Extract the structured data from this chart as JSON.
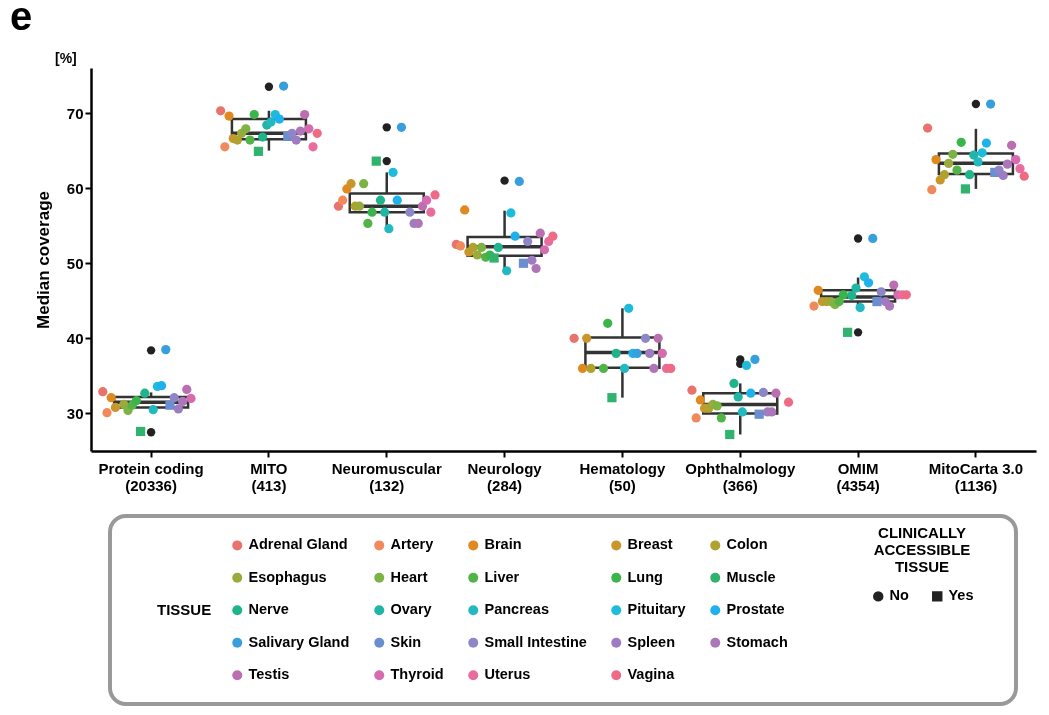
{
  "chart_data": {
    "type": "box",
    "title": "e",
    "subtitle": "[%]",
    "ylabel": "Median coverage",
    "legend_title": "TISSUE",
    "legend": "bottom",
    "marker": "circle",
    "annotations": [
      "CLINICALLY ACCESSIBLE TISSUE",
      "No",
      "Yes"
    ],
    "categories": [
      "Protein coding (20336)",
      "MITO (413)",
      "Neuromuscular (132)",
      "Neurology (284)",
      "Hematology (50)",
      "Ophthalmology (366)",
      "OMIM (4354)",
      "MitoCarta 3.0 (1136)"
    ],
    "ylim": [
      25,
      76
    ],
    "yticks": [
      30,
      40,
      50,
      60,
      70
    ],
    "boxes": [
      {
        "low": 30.5,
        "q1": 30.8,
        "median": 31.5,
        "q3": 32.2,
        "high": 32.8,
        "outliers": [
          38.4,
          27.5
        ]
      },
      {
        "low": 65.0,
        "q1": 66.5,
        "median": 67.3,
        "q3": 69.2,
        "high": 70.3,
        "outliers": [
          73.5
        ]
      },
      {
        "low": 54.7,
        "q1": 56.8,
        "median": 57.6,
        "q3": 59.3,
        "high": 62.1,
        "outliers": [
          68.1,
          63.6
        ]
      },
      {
        "low": 49.0,
        "q1": 51.0,
        "median": 52.2,
        "q3": 53.5,
        "high": 57.0,
        "outliers": [
          61.0
        ]
      },
      {
        "low": 32.1,
        "q1": 36.1,
        "median": 38.1,
        "q3": 40.1,
        "high": 44.0
      },
      {
        "low": 27.2,
        "q1": 30.0,
        "median": 31.2,
        "q3": 32.7,
        "high": 34.0,
        "outliers": [
          37.2,
          36.6
        ]
      },
      {
        "low": 44.1,
        "q1": 44.9,
        "median": 45.5,
        "q3": 46.4,
        "high": 48.1,
        "outliers": [
          53.3,
          40.8
        ]
      },
      {
        "low": 59.9,
        "q1": 61.9,
        "median": 63.3,
        "q3": 64.6,
        "high": 67.9,
        "outliers": [
          71.2
        ]
      }
    ],
    "series": [
      {
        "name": "Adrenal Gland",
        "type": "scatter",
        "color": "#e8736c",
        "values": [
          32.9,
          70.3,
          57.6,
          52.5,
          40.0,
          33.1,
          null,
          68.0
        ]
      },
      {
        "name": "Artery",
        "type": "scatter",
        "color": "#f08a5d",
        "values": [
          30.1,
          65.5,
          58.4,
          52.3,
          null,
          29.4,
          44.3,
          59.8
        ]
      },
      {
        "name": "Brain",
        "type": "scatter",
        "color": "#e0891f",
        "values": [
          32.1,
          69.6,
          59.9,
          57.1,
          36.0,
          31.8,
          46.4,
          63.8
        ]
      },
      {
        "name": "Breast",
        "type": "scatter",
        "color": "#c9962c",
        "values": [
          30.8,
          66.6,
          60.6,
          51.5,
          40.0,
          30.7,
          44.9,
          61.1
        ]
      },
      {
        "name": "Colon",
        "type": "scatter",
        "color": "#b1a12f",
        "values": [
          null,
          66.4,
          57.6,
          52.1,
          36.0,
          30.7,
          44.9,
          61.8
        ]
      },
      {
        "name": "Esophagus",
        "type": "scatter",
        "color": "#9aab3b",
        "values": [
          31.2,
          67.3,
          57.6,
          51.1,
          null,
          31.2,
          44.9,
          63.3
        ]
      },
      {
        "name": "Heart",
        "type": "scatter",
        "color": "#7cb342",
        "values": [
          30.4,
          67.9,
          60.6,
          52.1,
          null,
          31.0,
          44.5,
          64.5
        ]
      },
      {
        "name": "Liver",
        "type": "scatter",
        "color": "#52b447",
        "values": [
          31.1,
          66.4,
          55.3,
          50.8,
          36.0,
          29.4,
          44.9,
          62.4
        ]
      },
      {
        "name": "Lung",
        "type": "scatter",
        "color": "#3bb54a",
        "values": [
          31.7,
          69.8,
          56.8,
          51.1,
          42.0,
          null,
          45.8,
          66.1
        ]
      },
      {
        "name": "Muscle",
        "type": "scatter",
        "color": "#2fb36d",
        "marker": "square",
        "values": [
          27.6,
          64.9,
          63.6,
          50.7,
          32.1,
          27.2,
          40.8,
          59.9
        ]
      },
      {
        "name": "Nerve",
        "type": "scatter",
        "color": "#20b48c",
        "values": [
          32.7,
          66.8,
          58.4,
          52.1,
          38.0,
          34.0,
          45.7,
          61.8
        ]
      },
      {
        "name": "Ovary",
        "type": "scatter",
        "color": "#21b5a5",
        "values": [
          null,
          68.4,
          56.8,
          null,
          null,
          32.2,
          46.7,
          64.4
        ]
      },
      {
        "name": "Pancreas",
        "type": "scatter",
        "color": "#22b9c0",
        "values": [
          30.5,
          68.8,
          54.6,
          49.0,
          36.0,
          30.2,
          44.1,
          63.5
        ]
      },
      {
        "name": "Pituitary",
        "type": "scatter",
        "color": "#1ebbdc",
        "values": [
          33.6,
          69.8,
          62.1,
          56.7,
          44.0,
          36.4,
          48.2,
          64.7
        ]
      },
      {
        "name": "Prostate",
        "type": "scatter",
        "color": "#1fb1eb",
        "values": [
          33.7,
          69.2,
          58.4,
          53.6,
          38.0,
          32.7,
          47.4,
          66.0
        ]
      },
      {
        "name": "Salivary Gland",
        "type": "scatter",
        "color": "#389fdc",
        "values": [
          38.5,
          73.6,
          68.1,
          60.9,
          38.0,
          37.2,
          53.3,
          71.2
        ]
      },
      {
        "name": "Skin",
        "type": "scatter",
        "color": "#6a8ed0",
        "marker": "square",
        "values": [
          31.1,
          66.9,
          null,
          50.0,
          null,
          29.9,
          44.9,
          62.1
        ]
      },
      {
        "name": "Small Intestine",
        "type": "scatter",
        "color": "#8d87c8",
        "values": [
          32.1,
          67.3,
          56.8,
          52.9,
          40.0,
          32.8,
          46.2,
          62.4
        ]
      },
      {
        "name": "Spleen",
        "type": "scatter",
        "color": "#9e7cc1",
        "values": [
          30.6,
          66.4,
          55.3,
          50.4,
          38.0,
          30.2,
          44.9,
          61.7
        ]
      },
      {
        "name": "Stomach",
        "type": "scatter",
        "color": "#ad76b9",
        "values": [
          31.6,
          67.6,
          55.3,
          49.3,
          36.0,
          30.2,
          44.3,
          63.2
        ]
      },
      {
        "name": "Testis",
        "type": "scatter",
        "color": "#bb6fb0",
        "values": [
          33.2,
          69.8,
          57.6,
          54.0,
          40.0,
          32.7,
          47.1,
          65.7
        ]
      },
      {
        "name": "Thyroid",
        "type": "scatter",
        "color": "#d66bb0",
        "values": [
          32.0,
          67.9,
          58.4,
          51.8,
          38.0,
          null,
          45.8,
          63.8
        ]
      },
      {
        "name": "Uterus",
        "type": "scatter",
        "color": "#e96c9e",
        "values": [
          null,
          65.5,
          56.8,
          52.9,
          36.0,
          null,
          45.8,
          62.6
        ]
      },
      {
        "name": "Vagina",
        "type": "scatter",
        "color": "#ee6b85",
        "values": [
          null,
          67.3,
          59.1,
          53.6,
          36.0,
          31.5,
          45.8,
          61.6
        ]
      }
    ]
  }
}
